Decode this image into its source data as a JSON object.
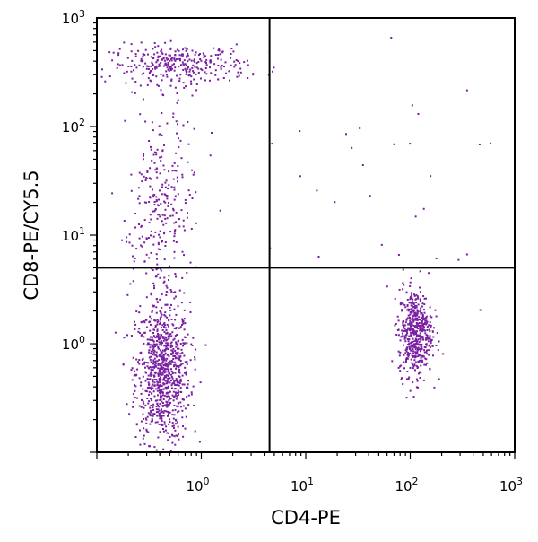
{
  "chart_data": {
    "type": "scatter",
    "xlabel": "CD4-PE",
    "ylabel": "CD8-PE/CY5.5",
    "xscale": "log",
    "yscale": "log",
    "xlim": [
      0.1,
      1000
    ],
    "ylim": [
      0.1,
      1000
    ],
    "x_ticks": [
      {
        "base": "10",
        "exp": "0",
        "value": 1
      },
      {
        "base": "10",
        "exp": "1",
        "value": 10
      },
      {
        "base": "10",
        "exp": "2",
        "value": 100
      },
      {
        "base": "10",
        "exp": "3",
        "value": 1000
      }
    ],
    "y_ticks": [
      {
        "base": "10",
        "exp": "0",
        "value": 1
      },
      {
        "base": "10",
        "exp": "1",
        "value": 10
      },
      {
        "base": "10",
        "exp": "2",
        "value": 100
      },
      {
        "base": "10",
        "exp": "3",
        "value": 1000
      }
    ],
    "quadrant_gates": {
      "x": 4.5,
      "y": 5
    },
    "grid": false,
    "point_color": "#7a1fa2",
    "populations": [
      {
        "x_center": 0.42,
        "y_center": 0.55,
        "count": 900
      },
      {
        "x_center": 0.6,
        "y_center": 380,
        "count": 320
      },
      {
        "x_center": 0.4,
        "y_center": 20,
        "count": 300
      },
      {
        "x_center": 110,
        "y_center": 1.3,
        "count": 520
      },
      {
        "x_center": 30,
        "y_center": 30,
        "count": 35
      }
    ]
  }
}
